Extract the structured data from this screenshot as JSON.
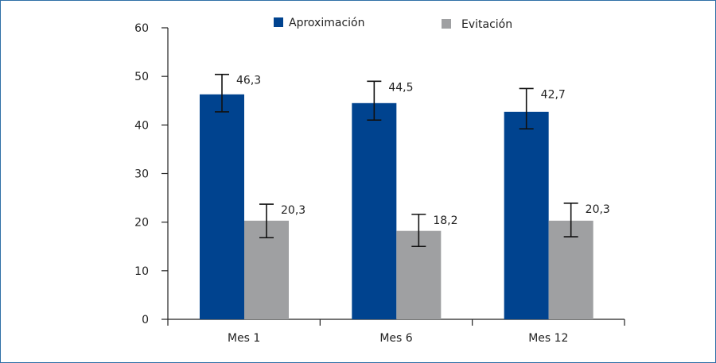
{
  "chart_data": {
    "type": "bar",
    "categories": [
      "Mes 1",
      "Mes 6",
      "Mes 12"
    ],
    "series": [
      {
        "name": "Aproximación",
        "color": "#00438f",
        "values": [
          46.3,
          44.5,
          42.7
        ],
        "labels": [
          "46,3",
          "44,5",
          "42,7"
        ],
        "error_low": [
          42.7,
          41.0,
          39.2
        ],
        "error_high": [
          50.4,
          49.0,
          47.5
        ]
      },
      {
        "name": "Evitación",
        "color": "#9fa0a2",
        "values": [
          20.3,
          18.2,
          20.3
        ],
        "labels": [
          "20,3",
          "18,2",
          "20,3"
        ],
        "error_low": [
          16.8,
          15.0,
          17.0
        ],
        "error_high": [
          23.7,
          21.6,
          23.9
        ]
      }
    ],
    "ylim": [
      0,
      60
    ],
    "yticks": [
      0,
      10,
      20,
      30,
      40,
      50,
      60
    ],
    "grid": false,
    "legend_position": "top-center",
    "title": "",
    "xlabel": "",
    "ylabel": ""
  }
}
